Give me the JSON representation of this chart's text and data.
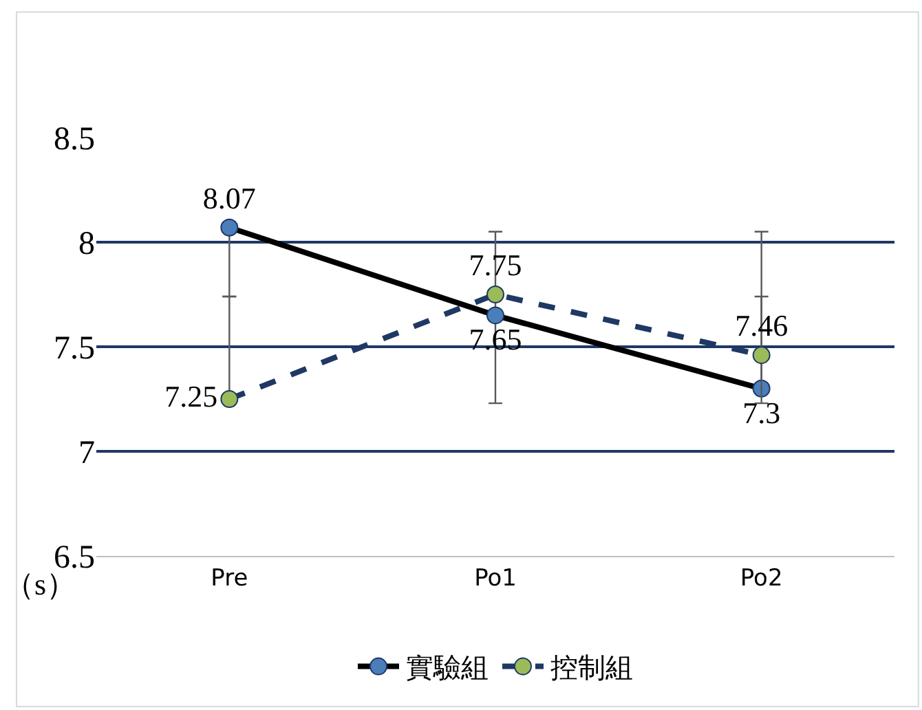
{
  "chart_data": {
    "type": "line",
    "ylabel": "（s）",
    "categories": [
      "Pre",
      "Po1",
      "Po2"
    ],
    "series": [
      {
        "name": "實驗組",
        "color": "#000000",
        "colors": [
          "#4a7ebb",
          "#4a7ebb",
          "#4a7ebb"
        ],
        "values": [
          8.07,
          7.65,
          7.3
        ],
        "line_style": "solid",
        "errors": [
          [
            7.74,
            8.07
          ],
          [
            7.23,
            8.05
          ],
          [
            7.3,
            7.74
          ]
        ]
      },
      {
        "name": "控制組",
        "color": "#1f3864",
        "colors": [
          "#9bbb59",
          "#9bbb59",
          "#9bbb59"
        ],
        "values": [
          7.25,
          7.75,
          7.46
        ],
        "line_style": "dashed",
        "errors": [
          [
            7.25,
            7.74
          ],
          null,
          [
            7.23,
            8.05
          ]
        ]
      }
    ],
    "ylim": [
      6.5,
      8.5
    ],
    "yticks": [
      6.5,
      7,
      7.5,
      8,
      8.5
    ],
    "grid": "y",
    "legend": "bottom",
    "marker": "circle",
    "data_labels": true
  }
}
